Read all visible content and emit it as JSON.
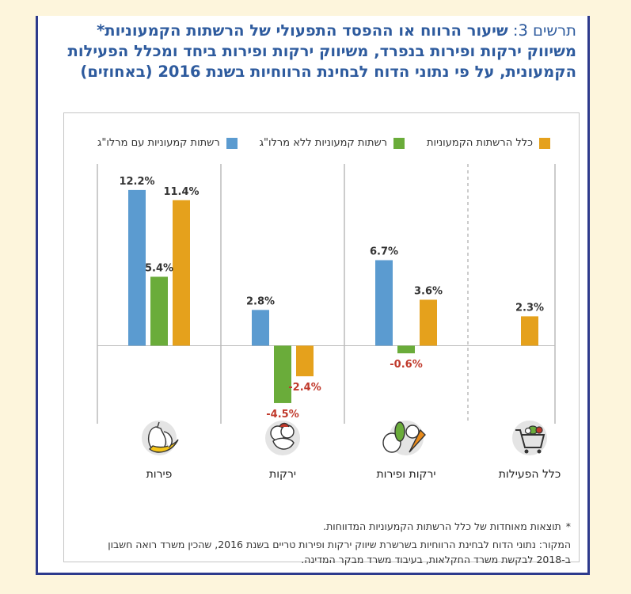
{
  "title": {
    "prefix": "תרשים 3: ",
    "main": "שיעור הרווח או ההפסד התפעולי של הרשתות הקמעוניות* משיווק ירקות ופירות בנפרד, משיווק ירקות ופירות ביחד ומכלל הפעילות הקמעונית, על פי נתוני הדוח לבחינת הרווחיות בשנת 2016 (באחוזים)"
  },
  "legend": [
    {
      "label": "רשתות קמעוניות עם מרלו\"ג",
      "color": "#5b9bd0"
    },
    {
      "label": "רשתות קמעוניות ללא מרלו\"ג",
      "color": "#6aac3a"
    },
    {
      "label": "כלל הרשתות הקמעוניות",
      "color": "#e5a11c"
    }
  ],
  "icons": [
    "pear-banana-icon",
    "vegetables-icon",
    "fruits-vegetables-icon",
    "shopping-cart-icon"
  ],
  "colors": {
    "negative_label": "#c0392b",
    "positive_label": "#333333"
  },
  "chart_data": {
    "type": "bar",
    "categories": [
      "פירות",
      "ירקות",
      "ירקות ופירות",
      "כלל הפעילות"
    ],
    "series": [
      {
        "name": "רשתות קמעוניות עם מרלו\"ג",
        "values": [
          12.2,
          2.8,
          6.7,
          null
        ],
        "labels": [
          "12.2%",
          "2.8%",
          "6.7%",
          ""
        ]
      },
      {
        "name": "רשתות קמעוניות ללא מרלו\"ג",
        "values": [
          5.4,
          -4.5,
          -0.6,
          null
        ],
        "labels": [
          "5.4%",
          "-4.5%",
          "-0.6%",
          ""
        ]
      },
      {
        "name": "כלל הרשתות הקמעוניות",
        "values": [
          11.4,
          -2.4,
          3.6,
          2.3
        ],
        "labels": [
          "11.4%",
          "-2.4%",
          "3.6%",
          "2.3%"
        ]
      }
    ],
    "ylim": [
      -5,
      13
    ],
    "grid": false,
    "legend_position": "top"
  },
  "notes": {
    "asterisk": "*",
    "footnote": "תוצאות מאוחדות של כלל הרשתות הקמעוניות המדווחות.",
    "source_line1": "המקור: נתוני הדוח לבחינת הרווחיות בשרשרת שיווק ירקות ופירות טריים בשנת 2016, שהכין משרד רואה חשבון",
    "source_line2": "ב-2018 לבקשת משרד החקלאות, בעיבוד משרד מבקר המדינה."
  }
}
